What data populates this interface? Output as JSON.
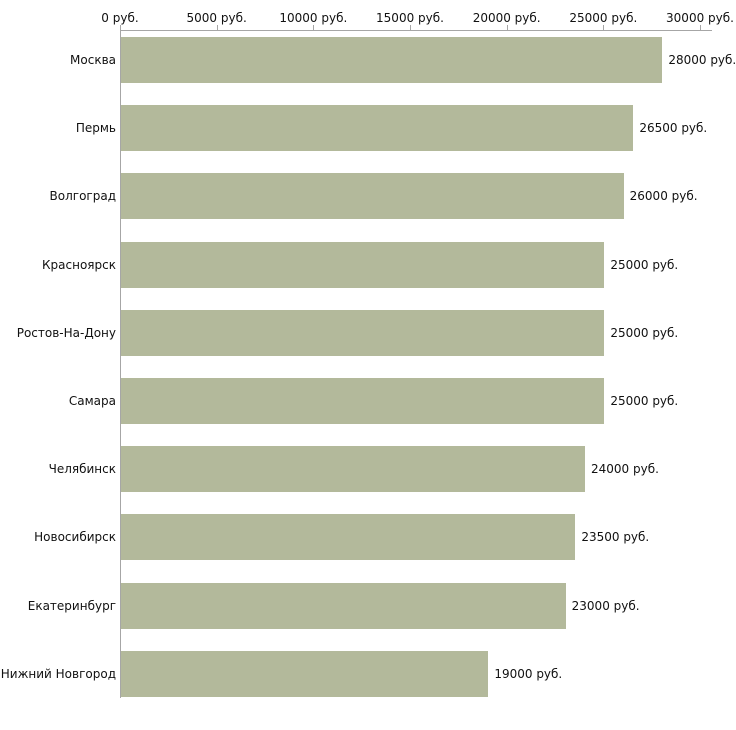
{
  "chart_data": {
    "type": "bar",
    "orientation": "horizontal",
    "title": "",
    "xlabel": "",
    "ylabel": "",
    "unit": "руб.",
    "xlim": [
      0,
      30000
    ],
    "grid": false,
    "legend": false,
    "categories": [
      "Москва",
      "Пермь",
      "Волгоград",
      "Красноярск",
      "Ростов-На-Дону",
      "Самара",
      "Челябинск",
      "Новосибирск",
      "Екатеринбург",
      "Нижний Новгород"
    ],
    "values": [
      28000,
      26500,
      26000,
      25000,
      25000,
      25000,
      24000,
      23500,
      23000,
      19000
    ],
    "value_labels": [
      "28000 руб.",
      "26500 руб.",
      "26000 руб.",
      "25000 руб.",
      "25000 руб.",
      "25000 руб.",
      "24000 руб.",
      "23500 руб.",
      "23000 руб.",
      "19000 руб."
    ],
    "x_ticks": [
      0,
      5000,
      10000,
      15000,
      20000,
      25000,
      30000
    ],
    "x_tick_labels": [
      "0 руб.",
      "5000 руб.",
      "10000 руб.",
      "15000 руб.",
      "20000 руб.",
      "25000 руб.",
      "30000 руб."
    ],
    "bar_color": "#b3b99b",
    "axis_color": "#a6a6a6",
    "text_color": "#111111"
  }
}
